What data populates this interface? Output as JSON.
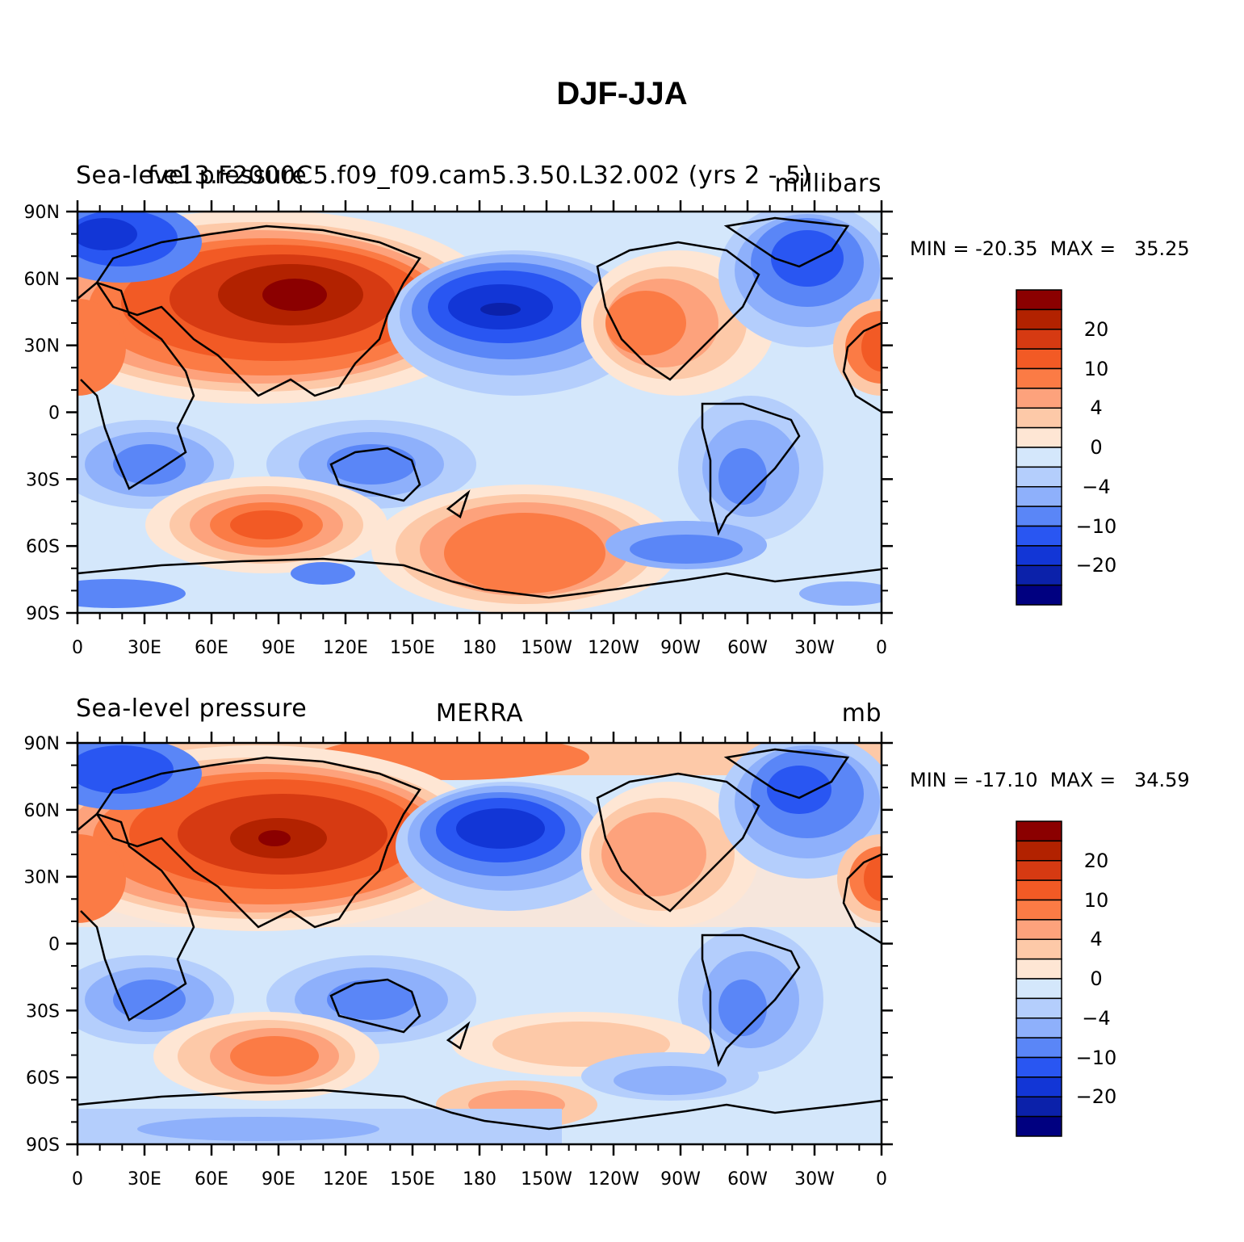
{
  "figure": {
    "title": "DJF-JJA"
  },
  "panels": [
    {
      "left_title": "Sea-level pressure",
      "center_title": "f.e13.F2000C5.f09_f09.cam5.3.50.L32.002 (yrs 2 - 5)",
      "right_title": "millibars",
      "stats": {
        "min_label": "MIN =",
        "min": "-20.35",
        "max_label": "MAX =",
        "max": "35.25"
      }
    },
    {
      "left_title": "Sea-level pressure",
      "center_title": "MERRA",
      "right_title": "mb",
      "stats": {
        "min_label": "MIN =",
        "min": "-17.10",
        "max_label": "MAX =",
        "max": "34.59"
      }
    }
  ],
  "axes": {
    "lon_ticks": [
      "0",
      "30E",
      "60E",
      "90E",
      "120E",
      "150E",
      "180",
      "150W",
      "120W",
      "90W",
      "60W",
      "30W",
      "0"
    ],
    "lat_ticks": [
      "90N",
      "60N",
      "30N",
      "0",
      "30S",
      "60S",
      "90S"
    ]
  },
  "colorbar": {
    "colors": [
      "#8b0000",
      "#b22200",
      "#d63a12",
      "#f25a25",
      "#fb7b45",
      "#fda27c",
      "#fdc9a8",
      "#fee6d4",
      "#d4e7fb",
      "#b4cefc",
      "#8eb0fb",
      "#5a86f7",
      "#2956f2",
      "#1236d6",
      "#0b21aa",
      "#000080"
    ],
    "labels": [
      "20",
      "10",
      "4",
      "0",
      "-4",
      "-10",
      "-20"
    ]
  }
}
